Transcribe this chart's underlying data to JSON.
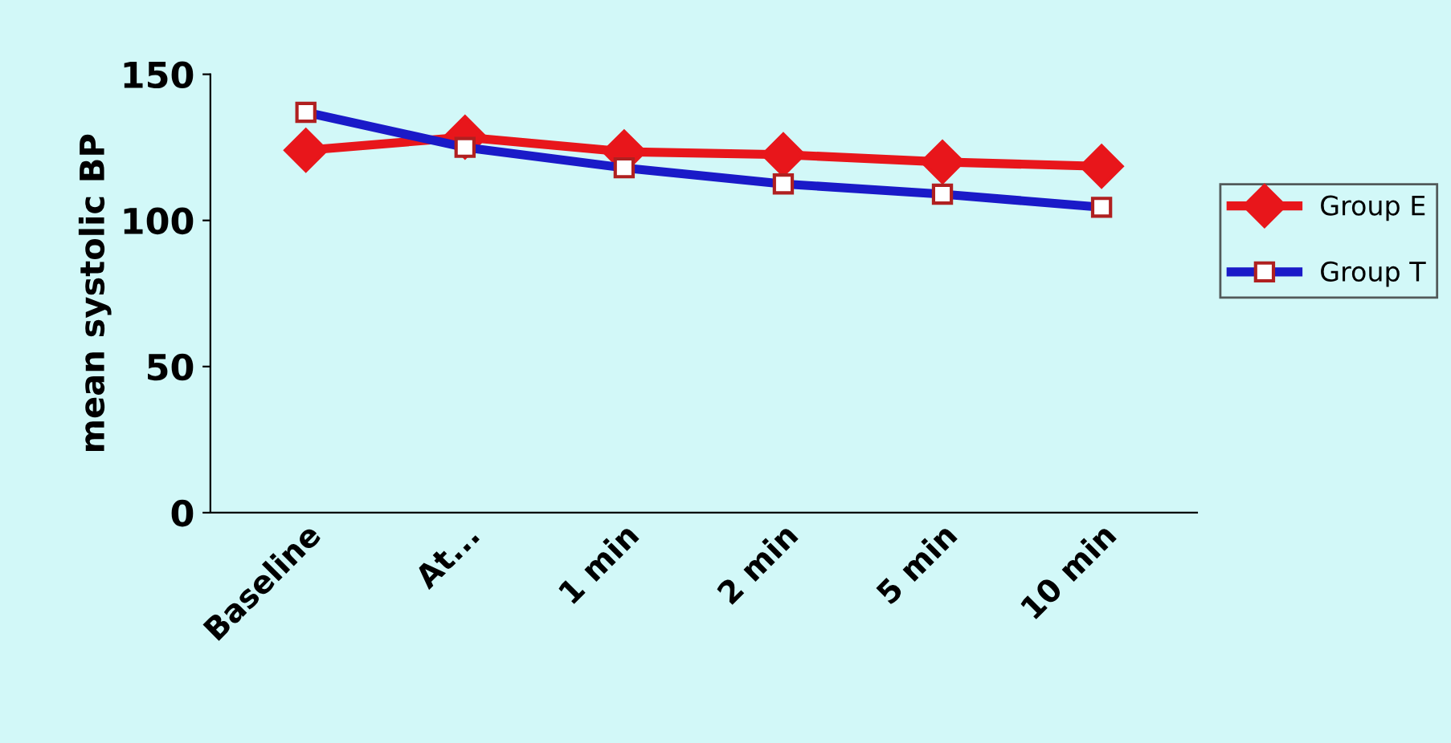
{
  "chart_data": {
    "type": "line",
    "ylabel": "mean systolic BP",
    "categories": [
      "Baseline",
      "At...",
      "1 min",
      "2 min",
      "5 min",
      "10 min"
    ],
    "series": [
      {
        "name": "Group E",
        "color": "#e8161b",
        "marker": "diamond",
        "values": [
          124,
          128.5,
          123.5,
          122.5,
          120,
          118.5
        ]
      },
      {
        "name": "Group T",
        "color": "#1a1ac8",
        "marker": "square",
        "values": [
          137,
          125,
          118,
          112.5,
          109,
          104.5
        ]
      }
    ],
    "ylim": [
      0,
      150
    ],
    "yticks": [
      0,
      50,
      100,
      150
    ],
    "grid": false,
    "legend": "right",
    "line_style": "solid"
  }
}
